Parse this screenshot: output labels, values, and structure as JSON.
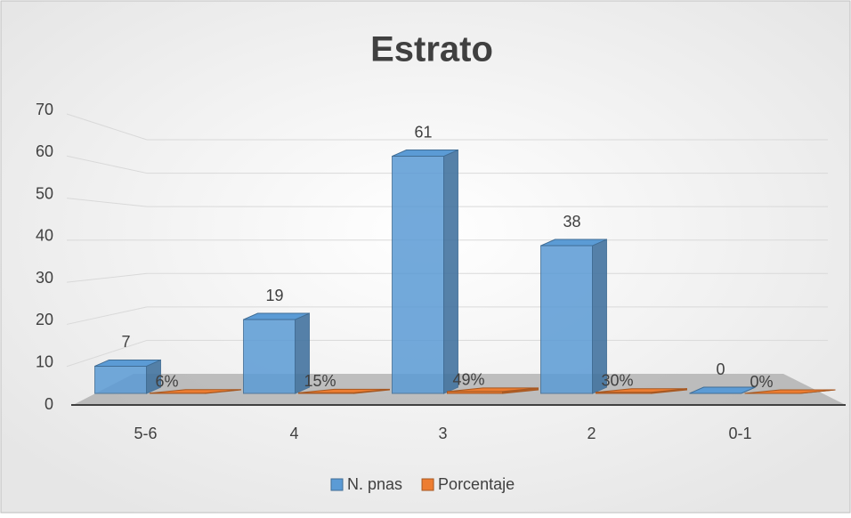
{
  "chart_data": {
    "type": "bar3d",
    "title": "Estrato",
    "categories": [
      "5-6",
      "4",
      "3",
      "2",
      "0-1"
    ],
    "series": [
      {
        "name": "N. pnas",
        "color": "#5b9bd5",
        "values": [
          7,
          19,
          61,
          38,
          0
        ]
      },
      {
        "name": "Porcentaje",
        "color": "#ed7d31",
        "values": [
          0.06,
          0.15,
          0.49,
          0.3,
          0
        ],
        "value_labels": [
          "6%",
          "15%",
          "49%",
          "30%",
          "0%"
        ]
      }
    ],
    "ylim": [
      0,
      70
    ],
    "yticks": [
      0,
      10,
      20,
      30,
      40,
      50,
      60,
      70
    ],
    "grid": true,
    "legend": "bottom"
  }
}
